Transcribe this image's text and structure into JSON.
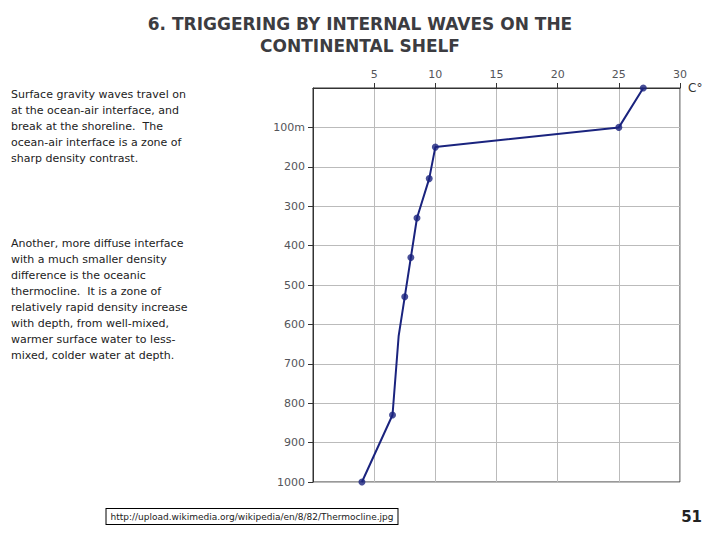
{
  "chart_data": {
    "type": "line",
    "title": "6. TRIGGERING BY INTERNAL WAVES ON THE\nCONTINENTAL SHELF",
    "annotations": [
      "Surface gravity waves travel on\nat the ocean-air interface, and\nbreak at the shoreline.  The\nocean-air interface is a zone of\nsharp density contrast.",
      "Another, more diffuse interface\nwith a much smaller density\ndifference is the oceanic\nthermocline.  It is a zone of\nrelatively rapid density increase\nwith depth, from well-mixed,\nwarmer surface water to less-\nmixed, colder water at depth.",
      "http://upload.wikimedia.org/wikipedia/en/8/82/Thermocline.jpg",
      "51"
    ],
    "xlabel": "C°",
    "xlim": [
      0,
      30
    ],
    "xticks": [
      5,
      10,
      15,
      20,
      25,
      30
    ],
    "ylim": [
      1000,
      0
    ],
    "yticks": [
      {
        "value": 100,
        "label": "100m"
      },
      200,
      300,
      400,
      500,
      600,
      700,
      800,
      900,
      1000
    ],
    "grid": true,
    "series": [
      {
        "type": "line",
        "color": "#1a237e",
        "marker": "none",
        "line_style": "solid",
        "x": [
          27,
          25,
          10,
          9.5,
          8.5,
          8.0,
          7.5,
          7.0,
          6.5,
          4.0
        ],
        "values": [
          0,
          100,
          150,
          230,
          330,
          430,
          530,
          630,
          830,
          1000
        ]
      },
      {
        "type": "scatter",
        "color": "#1a237e",
        "marker": "circle",
        "x": [
          27,
          25,
          10,
          9.5,
          8.5,
          8.0,
          7.5,
          6.5,
          4.0
        ],
        "values": [
          0,
          100,
          150,
          230,
          330,
          430,
          530,
          830,
          1000
        ]
      }
    ]
  }
}
